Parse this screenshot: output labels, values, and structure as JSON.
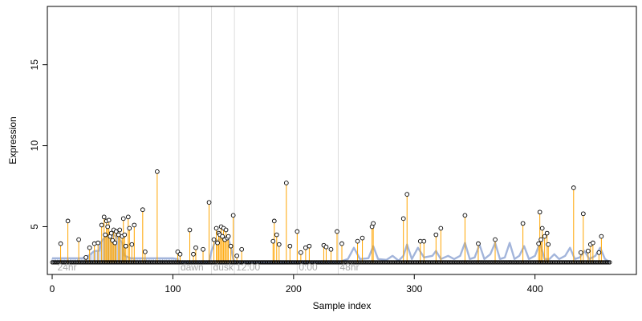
{
  "chart_data": {
    "type": "scatter",
    "title": "",
    "xlabel": "Sample index",
    "ylabel": "Expression",
    "xlim": [
      -4,
      484
    ],
    "ylim": [
      2.05,
      18.6
    ],
    "xticks": [
      0,
      100,
      200,
      300,
      400
    ],
    "yticks": [
      5,
      10,
      15
    ],
    "baseline": 2.8,
    "grid": false,
    "legend": "none",
    "colors": {
      "points": "#000000",
      "stems": "#ffa500",
      "profile": "#a3b5db",
      "separators": "#dddddd",
      "section_labels": "#aaaaaa"
    },
    "sections": [
      {
        "label": "24hr",
        "x": 3
      },
      {
        "label": "dawn",
        "x": 105
      },
      {
        "label": "dusk",
        "x": 132
      },
      {
        "label": "12:00",
        "x": 151
      },
      {
        "label": "0:00",
        "x": 203
      },
      {
        "label": "48hr",
        "x": 237
      }
    ],
    "highlights": [
      {
        "x": 7,
        "y": 3.95
      },
      {
        "x": 13,
        "y": 5.35
      },
      {
        "x": 22,
        "y": 4.2
      },
      {
        "x": 28,
        "y": 3.1
      },
      {
        "x": 31,
        "y": 3.7
      },
      {
        "x": 35,
        "y": 3.95
      },
      {
        "x": 38,
        "y": 4.0
      },
      {
        "x": 41,
        "y": 5.1
      },
      {
        "x": 43,
        "y": 5.6
      },
      {
        "x": 44,
        "y": 4.5
      },
      {
        "x": 45,
        "y": 5.35
      },
      {
        "x": 46,
        "y": 5.0
      },
      {
        "x": 47,
        "y": 5.4
      },
      {
        "x": 48,
        "y": 4.4
      },
      {
        "x": 49,
        "y": 4.6
      },
      {
        "x": 50,
        "y": 4.15
      },
      {
        "x": 51,
        "y": 4.8
      },
      {
        "x": 52,
        "y": 4.0
      },
      {
        "x": 53,
        "y": 4.7
      },
      {
        "x": 55,
        "y": 4.5
      },
      {
        "x": 56,
        "y": 4.8
      },
      {
        "x": 58,
        "y": 4.4
      },
      {
        "x": 59,
        "y": 5.5
      },
      {
        "x": 60,
        "y": 4.5
      },
      {
        "x": 61,
        "y": 3.8
      },
      {
        "x": 63,
        "y": 5.6
      },
      {
        "x": 64,
        "y": 4.9
      },
      {
        "x": 66,
        "y": 3.9
      },
      {
        "x": 68,
        "y": 5.1
      },
      {
        "x": 75,
        "y": 6.05
      },
      {
        "x": 77,
        "y": 3.45
      },
      {
        "x": 87,
        "y": 8.4
      },
      {
        "x": 104,
        "y": 3.45
      },
      {
        "x": 106,
        "y": 3.3
      },
      {
        "x": 114,
        "y": 4.8
      },
      {
        "x": 117,
        "y": 3.3
      },
      {
        "x": 119,
        "y": 3.7
      },
      {
        "x": 125,
        "y": 3.6
      },
      {
        "x": 130,
        "y": 6.5
      },
      {
        "x": 134,
        "y": 4.2
      },
      {
        "x": 136,
        "y": 4.9
      },
      {
        "x": 137,
        "y": 4.0
      },
      {
        "x": 138,
        "y": 4.6
      },
      {
        "x": 139,
        "y": 4.5
      },
      {
        "x": 140,
        "y": 5.0
      },
      {
        "x": 141,
        "y": 4.4
      },
      {
        "x": 142,
        "y": 4.9
      },
      {
        "x": 143,
        "y": 4.2
      },
      {
        "x": 144,
        "y": 4.8
      },
      {
        "x": 145,
        "y": 4.3
      },
      {
        "x": 146,
        "y": 4.4
      },
      {
        "x": 148,
        "y": 3.8
      },
      {
        "x": 150,
        "y": 5.7
      },
      {
        "x": 153,
        "y": 3.2
      },
      {
        "x": 157,
        "y": 3.6
      },
      {
        "x": 183,
        "y": 4.1
      },
      {
        "x": 184,
        "y": 5.35
      },
      {
        "x": 186,
        "y": 4.5
      },
      {
        "x": 188,
        "y": 3.9
      },
      {
        "x": 194,
        "y": 7.7
      },
      {
        "x": 197,
        "y": 3.8
      },
      {
        "x": 203,
        "y": 4.7
      },
      {
        "x": 206,
        "y": 3.4
      },
      {
        "x": 210,
        "y": 3.7
      },
      {
        "x": 213,
        "y": 3.8
      },
      {
        "x": 225,
        "y": 3.85
      },
      {
        "x": 227,
        "y": 3.75
      },
      {
        "x": 231,
        "y": 3.6
      },
      {
        "x": 236,
        "y": 4.7
      },
      {
        "x": 240,
        "y": 3.95
      },
      {
        "x": 253,
        "y": 4.1
      },
      {
        "x": 257,
        "y": 4.3
      },
      {
        "x": 265,
        "y": 5.0
      },
      {
        "x": 266,
        "y": 5.2
      },
      {
        "x": 291,
        "y": 5.5
      },
      {
        "x": 294,
        "y": 7.0
      },
      {
        "x": 305,
        "y": 4.1
      },
      {
        "x": 308,
        "y": 4.1
      },
      {
        "x": 318,
        "y": 4.5
      },
      {
        "x": 322,
        "y": 4.9
      },
      {
        "x": 342,
        "y": 5.7
      },
      {
        "x": 353,
        "y": 3.95
      },
      {
        "x": 367,
        "y": 4.2
      },
      {
        "x": 390,
        "y": 5.2
      },
      {
        "x": 403,
        "y": 3.95
      },
      {
        "x": 404,
        "y": 5.9
      },
      {
        "x": 405,
        "y": 4.2
      },
      {
        "x": 406,
        "y": 4.9
      },
      {
        "x": 408,
        "y": 4.4
      },
      {
        "x": 410,
        "y": 4.6
      },
      {
        "x": 411,
        "y": 3.9
      },
      {
        "x": 432,
        "y": 7.4
      },
      {
        "x": 438,
        "y": 3.4
      },
      {
        "x": 440,
        "y": 5.8
      },
      {
        "x": 444,
        "y": 3.5
      },
      {
        "x": 446,
        "y": 3.9
      },
      {
        "x": 448,
        "y": 4.0
      },
      {
        "x": 453,
        "y": 3.4
      },
      {
        "x": 455,
        "y": 4.4
      }
    ],
    "profile": [
      {
        "x": 0,
        "y": 3.05
      },
      {
        "x": 5,
        "y": 3.05
      },
      {
        "x": 10,
        "y": 3.05
      },
      {
        "x": 20,
        "y": 3.05
      },
      {
        "x": 25,
        "y": 3.05
      },
      {
        "x": 30,
        "y": 3.2
      },
      {
        "x": 35,
        "y": 3.5
      },
      {
        "x": 39,
        "y": 3.5
      },
      {
        "x": 40,
        "y": 4.0
      },
      {
        "x": 44,
        "y": 4.4
      },
      {
        "x": 48,
        "y": 4.5
      },
      {
        "x": 52,
        "y": 4.45
      },
      {
        "x": 56,
        "y": 4.2
      },
      {
        "x": 58,
        "y": 4.0
      },
      {
        "x": 60,
        "y": 3.2
      },
      {
        "x": 65,
        "y": 3.05
      },
      {
        "x": 70,
        "y": 3.05
      },
      {
        "x": 80,
        "y": 3.05
      },
      {
        "x": 90,
        "y": 3.05
      },
      {
        "x": 100,
        "y": 3.05
      },
      {
        "x": 104,
        "y": 3.0
      },
      {
        "x": 105,
        "y": 2.8
      },
      {
        "x": 130,
        "y": 2.8
      },
      {
        "x": 132,
        "y": 3.5
      },
      {
        "x": 134,
        "y": 3.9
      },
      {
        "x": 138,
        "y": 4.2
      },
      {
        "x": 142,
        "y": 4.3
      },
      {
        "x": 146,
        "y": 4.2
      },
      {
        "x": 148,
        "y": 3.8
      },
      {
        "x": 150,
        "y": 3.0
      },
      {
        "x": 152,
        "y": 2.8
      },
      {
        "x": 237,
        "y": 2.8
      },
      {
        "x": 245,
        "y": 3.0
      },
      {
        "x": 250,
        "y": 3.7
      },
      {
        "x": 255,
        "y": 3.0
      },
      {
        "x": 262,
        "y": 3.05
      },
      {
        "x": 266,
        "y": 3.8
      },
      {
        "x": 270,
        "y": 3.0
      },
      {
        "x": 277,
        "y": 2.95
      },
      {
        "x": 282,
        "y": 3.2
      },
      {
        "x": 287,
        "y": 2.9
      },
      {
        "x": 291,
        "y": 3.2
      },
      {
        "x": 294,
        "y": 3.9
      },
      {
        "x": 298,
        "y": 3.0
      },
      {
        "x": 303,
        "y": 3.7
      },
      {
        "x": 308,
        "y": 3.1
      },
      {
        "x": 315,
        "y": 3.2
      },
      {
        "x": 318,
        "y": 3.5
      },
      {
        "x": 322,
        "y": 3.0
      },
      {
        "x": 328,
        "y": 3.2
      },
      {
        "x": 333,
        "y": 3.0
      },
      {
        "x": 338,
        "y": 3.2
      },
      {
        "x": 342,
        "y": 4.0
      },
      {
        "x": 346,
        "y": 3.0
      },
      {
        "x": 350,
        "y": 3.1
      },
      {
        "x": 354,
        "y": 3.9
      },
      {
        "x": 358,
        "y": 3.0
      },
      {
        "x": 363,
        "y": 3.3
      },
      {
        "x": 367,
        "y": 4.0
      },
      {
        "x": 371,
        "y": 3.0
      },
      {
        "x": 375,
        "y": 3.1
      },
      {
        "x": 379,
        "y": 4.0
      },
      {
        "x": 383,
        "y": 3.0
      },
      {
        "x": 387,
        "y": 3.2
      },
      {
        "x": 391,
        "y": 3.8
      },
      {
        "x": 395,
        "y": 3.0
      },
      {
        "x": 400,
        "y": 3.2
      },
      {
        "x": 404,
        "y": 4.0
      },
      {
        "x": 408,
        "y": 3.0
      },
      {
        "x": 412,
        "y": 3.0
      },
      {
        "x": 416,
        "y": 3.3
      },
      {
        "x": 420,
        "y": 3.0
      },
      {
        "x": 425,
        "y": 3.2
      },
      {
        "x": 429,
        "y": 3.7
      },
      {
        "x": 433,
        "y": 3.0
      },
      {
        "x": 437,
        "y": 3.1
      },
      {
        "x": 441,
        "y": 3.5
      },
      {
        "x": 445,
        "y": 3.0
      },
      {
        "x": 450,
        "y": 3.2
      },
      {
        "x": 454,
        "y": 3.7
      },
      {
        "x": 458,
        "y": 3.0
      },
      {
        "x": 462,
        "y": 2.8
      }
    ]
  }
}
